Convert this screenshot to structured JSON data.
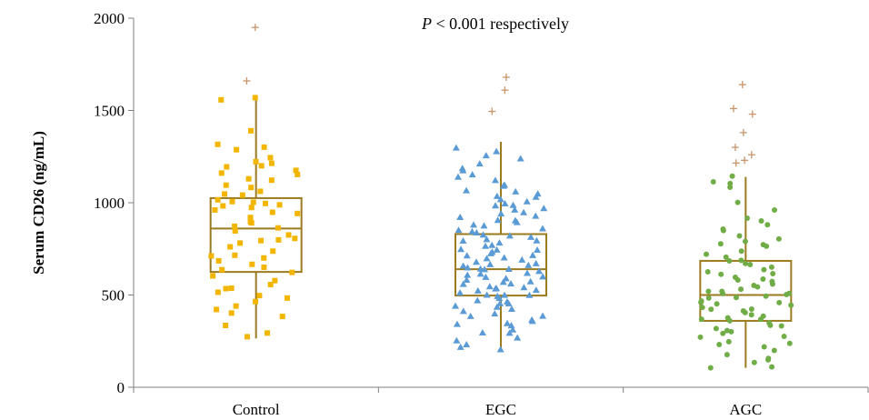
{
  "chart_data": {
    "type": "box",
    "title": "",
    "xlabel": "",
    "ylabel": "Serum CD26 (ng/mL)",
    "ylim": [
      0,
      2000
    ],
    "yticks": [
      "0",
      "500",
      "1000",
      "1500",
      "2000"
    ],
    "categories": [
      "Control",
      "EGC",
      "AGC"
    ],
    "annotation": {
      "italic": "P",
      "rest": " < 0.001 respectively"
    },
    "grid": false,
    "box_color": "#9C7A1E",
    "outlier_color": "#C8956A",
    "groups": [
      {
        "name": "Control",
        "marker": "square",
        "color": "#F2B600",
        "whisker_low": 265,
        "q1": 625,
        "median": 860,
        "q3": 1025,
        "whisker_high": 1570,
        "outliers": [
          1660,
          1950
        ],
        "points": [
          1570,
          1555,
          1390,
          1320,
          1300,
          1290,
          1240,
          1220,
          1210,
          1200,
          1190,
          1180,
          1160,
          1150,
          1130,
          1120,
          1100,
          1080,
          1060,
          1050,
          1040,
          1020,
          1010,
          1000,
          995,
          990,
          980,
          970,
          960,
          950,
          940,
          920,
          900,
          890,
          870,
          860,
          850,
          830,
          810,
          800,
          790,
          780,
          760,
          740,
          720,
          710,
          700,
          690,
          670,
          650,
          640,
          620,
          600,
          580,
          560,
          540,
          530,
          510,
          500,
          480,
          460,
          440,
          420,
          400,
          380,
          330,
          290,
          270
        ]
      },
      {
        "name": "EGC",
        "marker": "triangle",
        "color": "#5B9BD5",
        "whisker_low": 200,
        "q1": 497,
        "median": 640,
        "q3": 830,
        "whisker_high": 1330,
        "outliers": [
          1495,
          1610,
          1680
        ],
        "points": [
          1300,
          1280,
          1260,
          1240,
          1210,
          1190,
          1170,
          1150,
          1140,
          1120,
          1100,
          1090,
          1070,
          1060,
          1050,
          1040,
          1030,
          1020,
          1010,
          1000,
          990,
          980,
          970,
          960,
          950,
          940,
          930,
          920,
          910,
          900,
          890,
          880,
          870,
          860,
          850,
          845,
          840,
          830,
          820,
          810,
          800,
          795,
          790,
          780,
          770,
          760,
          750,
          745,
          740,
          730,
          720,
          715,
          710,
          700,
          695,
          690,
          680,
          675,
          670,
          660,
          655,
          650,
          645,
          640,
          635,
          630,
          620,
          615,
          610,
          600,
          595,
          590,
          580,
          575,
          570,
          560,
          555,
          550,
          545,
          540,
          530,
          525,
          520,
          510,
          505,
          500,
          495,
          490,
          480,
          470,
          460,
          455,
          450,
          440,
          430,
          420,
          410,
          400,
          390,
          380,
          370,
          360,
          350,
          340,
          330,
          310,
          300,
          290,
          270,
          250,
          230,
          215,
          205
        ]
      },
      {
        "name": "AGC",
        "marker": "circle",
        "color": "#70AD47",
        "whisker_low": 105,
        "q1": 360,
        "median": 500,
        "q3": 685,
        "whisker_high": 1140,
        "outliers": [
          1215,
          1230,
          1260,
          1300,
          1380,
          1480,
          1510,
          1640
        ],
        "points": [
          1140,
          1110,
          1100,
          1080,
          1000,
          960,
          920,
          900,
          880,
          860,
          850,
          820,
          800,
          790,
          780,
          770,
          760,
          740,
          720,
          700,
          690,
          680,
          670,
          660,
          650,
          640,
          630,
          620,
          610,
          600,
          590,
          580,
          570,
          560,
          550,
          540,
          530,
          520,
          515,
          510,
          505,
          500,
          495,
          490,
          480,
          470,
          460,
          455,
          450,
          440,
          430,
          425,
          420,
          410,
          400,
          395,
          390,
          380,
          370,
          365,
          360,
          350,
          340,
          330,
          320,
          310,
          300,
          290,
          280,
          270,
          250,
          240,
          230,
          220,
          200,
          180,
          160,
          150,
          130,
          115,
          105
        ]
      }
    ]
  }
}
